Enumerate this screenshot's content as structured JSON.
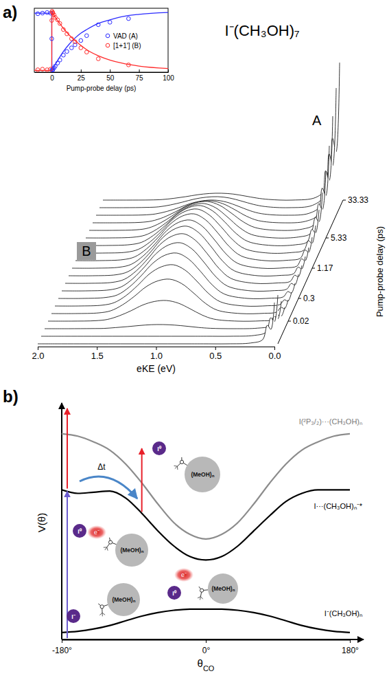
{
  "chart_data": [
    {
      "type": "scatter",
      "xlabel": "Pump-probe delay (ps)",
      "xlim": [
        -15,
        100
      ],
      "xticks": [
        0,
        25,
        50,
        75,
        100
      ],
      "ylim": [
        0,
        1.05
      ],
      "tick_labels": "x",
      "legend": "right",
      "series": [
        {
          "name": "VAD (A)",
          "color": "#2b2bff",
          "marker": "circle",
          "x": [
            -12,
            -8,
            -4,
            -1,
            0,
            0.3,
            0.7,
            1,
            2,
            3,
            5,
            7,
            10,
            13,
            17,
            20,
            25,
            30,
            40,
            50,
            66
          ],
          "values": [
            0.96,
            0.97,
            0.98,
            0.97,
            0.55,
            0.04,
            0.03,
            0.05,
            0.07,
            0.1,
            0.15,
            0.2,
            0.28,
            0.34,
            0.4,
            0.45,
            0.52,
            0.6,
            0.78,
            0.82,
            0.88
          ]
        },
        {
          "name": "[1+1'] (B)",
          "color": "#ff2a2a",
          "marker": "circle",
          "x": [
            -12,
            -8,
            -4,
            -1,
            0,
            0.3,
            0.7,
            1,
            2,
            3,
            5,
            7,
            10,
            13,
            17,
            20,
            25,
            30,
            40,
            66
          ],
          "values": [
            0.04,
            0.05,
            0.04,
            0.05,
            0.85,
            1.0,
            0.98,
            0.97,
            0.94,
            0.9,
            0.86,
            0.8,
            0.7,
            0.63,
            0.55,
            0.5,
            0.4,
            0.33,
            0.22,
            0.12
          ]
        },
        {
          "type": "line",
          "color": "#2b2bff",
          "x": [
            -15,
            -0.1,
            0.2,
            2,
            5,
            10,
            15,
            20,
            25,
            30,
            40,
            50,
            60,
            75,
            100
          ],
          "values": [
            0.97,
            0.97,
            0.02,
            0.09,
            0.19,
            0.34,
            0.46,
            0.56,
            0.64,
            0.7,
            0.8,
            0.86,
            0.91,
            0.95,
            0.98
          ]
        },
        {
          "type": "line",
          "color": "#ff2a2a",
          "x": [
            -15,
            -0.1,
            0.2,
            2,
            5,
            10,
            15,
            20,
            25,
            30,
            40,
            50,
            60,
            75,
            100
          ],
          "values": [
            0.03,
            0.03,
            1.0,
            0.93,
            0.85,
            0.72,
            0.61,
            0.52,
            0.44,
            0.37,
            0.27,
            0.2,
            0.15,
            0.1,
            0.06
          ]
        }
      ]
    },
    {
      "type": "waterfall",
      "panel_label": "a)",
      "title": "I⁻(CH₃OH)₇",
      "xlabel": "eKE (eV)",
      "xlim": [
        2,
        0
      ],
      "xticks": [
        {
          "value": 2,
          "label": "2.0"
        },
        {
          "value": 1.5,
          "label": "1.5"
        },
        {
          "value": 1,
          "label": "1.0"
        },
        {
          "value": 0.5,
          "label": "0.5"
        },
        {
          "value": 0,
          "label": "0.0"
        }
      ],
      "ylim": [
        0,
        10
      ],
      "tick_labels": "x",
      "delay_label": "Pump-probe delay (ps)",
      "delay_ticks": [
        0.02,
        0.3,
        1.17,
        5.33,
        33.33
      ],
      "annotations": [
        "A",
        "B"
      ],
      "x": [
        0,
        0.03,
        0.06,
        0.1,
        0.2,
        0.4,
        0.6,
        0.7,
        0.8,
        0.9,
        1.0,
        1.1,
        1.2,
        1.3,
        1.4,
        1.5,
        1.6,
        1.8,
        2.0
      ],
      "delays": [
        -0.3,
        -0.1,
        0,
        0.02,
        0.05,
        0.1,
        0.3,
        0.5,
        0.7,
        0.9,
        1.17,
        1.6,
        2.2,
        3.5,
        5.33,
        8,
        12,
        18,
        25,
        33.33
      ],
      "spectra": [
        [
          3,
          1.05,
          1.35,
          0.3,
          0.06,
          0,
          0,
          0,
          0,
          0,
          0,
          0,
          0,
          0,
          0,
          0,
          0,
          0,
          0
        ],
        [
          3,
          1.05,
          1.35,
          0.3,
          0.06,
          0,
          0,
          0,
          0,
          0,
          0,
          0,
          0,
          0,
          0,
          0,
          0,
          0,
          0
        ],
        [
          2,
          0.7,
          0.9,
          0.2,
          0.04,
          0,
          0.03,
          0.09,
          0.18,
          0.26,
          0.3,
          0.29,
          0.23,
          0.15,
          0.08,
          0.02,
          0.01,
          0,
          0
        ],
        [
          1,
          0.35,
          0.45,
          0.1,
          0.02,
          0,
          0.15,
          0.45,
          0.9,
          1.31,
          1.5,
          1.43,
          1.17,
          0.75,
          0.38,
          0.12,
          0.03,
          0,
          0
        ],
        [
          1,
          0.35,
          0.45,
          0.1,
          0.02,
          0,
          0.25,
          0.75,
          1.5,
          2.18,
          2.5,
          2.38,
          1.95,
          1.25,
          0.63,
          0.2,
          0.05,
          0,
          0
        ],
        [
          1,
          0.35,
          0.45,
          0.1,
          0.02,
          0,
          0.3,
          0.9,
          1.8,
          2.61,
          3,
          2.85,
          2.34,
          1.5,
          0.75,
          0.24,
          0.06,
          0,
          0
        ],
        [
          1.1,
          0.39,
          0.5,
          0.11,
          0.02,
          0,
          0.33,
          0.99,
          1.98,
          2.87,
          3.3,
          3.14,
          2.57,
          1.65,
          0.83,
          0.26,
          0.07,
          0,
          0
        ],
        [
          1.2,
          0.42,
          0.54,
          0.12,
          0.02,
          0,
          0.35,
          1.05,
          2.1,
          3.05,
          3.5,
          3.33,
          2.73,
          1.75,
          0.88,
          0.28,
          0.07,
          0,
          0
        ],
        [
          1.3,
          0.46,
          0.59,
          0.13,
          0.03,
          0,
          0.36,
          1.08,
          2.16,
          3.13,
          3.6,
          3.42,
          2.81,
          1.8,
          0.9,
          0.29,
          0.07,
          0,
          0
        ],
        [
          1.4,
          0.49,
          0.63,
          0.14,
          0.03,
          0,
          0.36,
          1.08,
          2.16,
          3.13,
          3.6,
          3.42,
          2.81,
          1.8,
          0.9,
          0.29,
          0.07,
          0,
          0
        ],
        [
          1.5,
          0.53,
          0.68,
          0.15,
          0.03,
          0,
          0.35,
          1.05,
          2.1,
          3.05,
          3.5,
          3.33,
          2.73,
          1.75,
          0.88,
          0.28,
          0.07,
          0,
          0
        ],
        [
          1.7,
          0.6,
          0.77,
          0.17,
          0.03,
          0,
          0.34,
          1.02,
          2.04,
          2.96,
          3.4,
          3.23,
          2.65,
          1.7,
          0.85,
          0.27,
          0.07,
          0,
          0
        ],
        [
          2,
          0.7,
          0.9,
          0.2,
          0.04,
          0,
          0.32,
          0.96,
          1.92,
          2.78,
          3.2,
          3.04,
          2.5,
          1.6,
          0.8,
          0.26,
          0.06,
          0,
          0
        ],
        [
          2.6,
          0.91,
          1.17,
          0.26,
          0.05,
          0,
          0.29,
          0.87,
          1.74,
          2.52,
          2.9,
          2.76,
          2.26,
          1.45,
          0.73,
          0.23,
          0.06,
          0,
          0
        ],
        [
          3.3,
          1.16,
          1.49,
          0.33,
          0.07,
          0,
          0.25,
          0.75,
          1.5,
          2.18,
          2.5,
          2.38,
          1.95,
          1.25,
          0.63,
          0.2,
          0.05,
          0,
          0
        ],
        [
          4.3,
          1.51,
          1.94,
          0.43,
          0.09,
          0,
          0.21,
          0.63,
          1.26,
          1.83,
          2.1,
          2,
          1.64,
          1.05,
          0.53,
          0.17,
          0.04,
          0,
          0
        ],
        [
          5.6,
          1.96,
          2.52,
          0.56,
          0.11,
          0,
          0.16,
          0.48,
          0.96,
          1.39,
          1.6,
          1.52,
          1.25,
          0.8,
          0.4,
          0.13,
          0.03,
          0,
          0
        ],
        [
          7.2,
          2.52,
          3.24,
          0.72,
          0.14,
          0,
          0.11,
          0.33,
          0.66,
          0.96,
          1.1,
          1.05,
          0.86,
          0.55,
          0.28,
          0.09,
          0.02,
          0,
          0
        ],
        [
          8.7,
          3.05,
          3.92,
          0.87,
          0.17,
          0,
          0.08,
          0.24,
          0.48,
          0.7,
          0.8,
          0.76,
          0.62,
          0.4,
          0.2,
          0.06,
          0.02,
          0,
          0
        ],
        [
          10,
          3.5,
          4.5,
          1,
          0.2,
          0,
          0.05,
          0.15,
          0.3,
          0.44,
          0.5,
          0.48,
          0.39,
          0.25,
          0.13,
          0.04,
          0.01,
          0,
          0
        ]
      ]
    },
    {
      "type": "line",
      "panel_label": "b)",
      "xlabel": "θ",
      "xlabel_subscript": "CO",
      "ylabel": "V(θ)",
      "xlim": [
        -180,
        180
      ],
      "xticks": [
        {
          "value": -180,
          "label": "-180°"
        },
        {
          "value": 0,
          "label": "0°"
        },
        {
          "value": 180,
          "label": "180°"
        }
      ],
      "ylim": [
        0,
        10
      ],
      "tick_labels": "x",
      "annotations": [
        "Δt"
      ],
      "x": [
        -180,
        -160,
        -140,
        -120,
        -100,
        -80,
        -60,
        -40,
        -20,
        0,
        20,
        40,
        60,
        80,
        100,
        120,
        140,
        160,
        180
      ],
      "series": [
        {
          "name": "I(²P₃/₂)···(CH₃OH)ₙ",
          "color": "#8c8c8c",
          "values": [
            8.8,
            8.7,
            8.45,
            8.1,
            7.5,
            6.7,
            5.8,
            5.0,
            4.5,
            4.3,
            4.5,
            5.0,
            5.8,
            6.7,
            7.5,
            8.1,
            8.45,
            8.7,
            8.8
          ]
        },
        {
          "name": "I···(CH₃OH)ₙ⁻*",
          "color": "#000000",
          "values": [
            6.4,
            6.25,
            6.3,
            6.35,
            6.05,
            5.4,
            4.65,
            4.0,
            3.55,
            3.4,
            3.55,
            4.0,
            4.65,
            5.3,
            5.9,
            6.25,
            6.4,
            6.4,
            6.4
          ]
        },
        {
          "name": "I⁻(CH₃OH)ₙ",
          "color": "#000000",
          "values": [
            0.3,
            0.35,
            0.45,
            0.6,
            0.8,
            1.0,
            1.15,
            1.25,
            1.3,
            1.3,
            1.3,
            1.25,
            1.15,
            1.0,
            0.8,
            0.6,
            0.45,
            0.35,
            0.3
          ]
        }
      ],
      "cartoons": [
        {
          "iodine": "I⁻",
          "cluster": "(MeOH)ₙ"
        },
        {
          "iodine": "I⁰",
          "electron": "e⁻",
          "cluster": "(MeOH)ₙ"
        },
        {
          "iodine": "I⁰",
          "cluster": "(MeOH)ₙ"
        },
        {
          "iodine": "I⁰",
          "electron": "e⁻",
          "cluster": "(MeOH)ₙ"
        }
      ]
    }
  ]
}
